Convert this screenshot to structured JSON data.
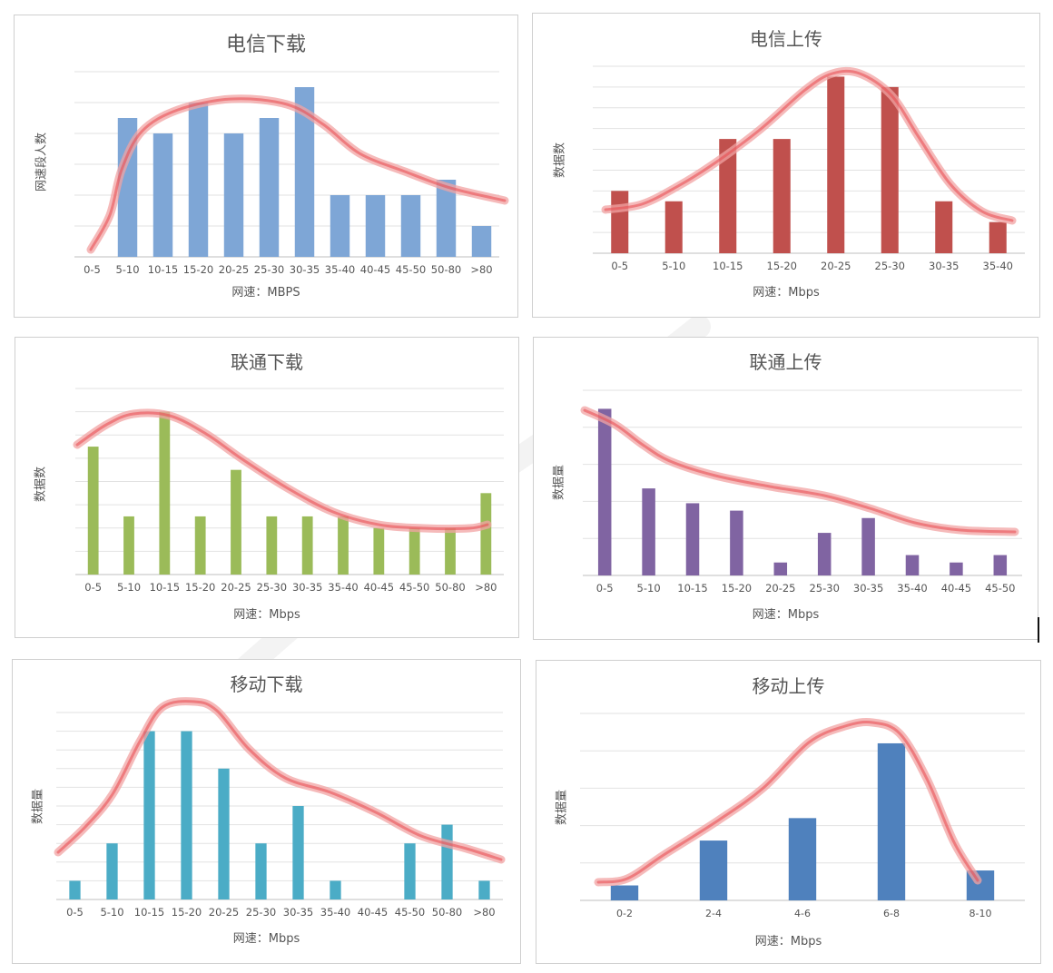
{
  "chart_data": [
    {
      "type": "bar",
      "title": "电信下载",
      "xlabel": "网速：MBPS",
      "ylabel": "网速段人数",
      "categories": [
        "0-5",
        "5-10",
        "10-15",
        "15-20",
        "20-25",
        "25-30",
        "30-35",
        "35-40",
        "40-45",
        "45-50",
        "50-80",
        ">80"
      ],
      "values": [
        0,
        9,
        8,
        10,
        8,
        9,
        11,
        4,
        4,
        4,
        5,
        2
      ],
      "ylim": [
        0,
        12
      ],
      "grid": true,
      "color": "#7ea6d6"
    },
    {
      "type": "bar",
      "title": "电信上传",
      "xlabel": "网速：Mbps",
      "ylabel": "数据数",
      "categories": [
        "0-5",
        "5-10",
        "10-15",
        "15-20",
        "20-25",
        "25-30",
        "30-35",
        "35-40"
      ],
      "values": [
        6,
        5,
        11,
        11,
        17,
        16,
        5,
        3
      ],
      "ylim": [
        0,
        18
      ],
      "grid": true,
      "color": "#c0504d"
    },
    {
      "type": "bar",
      "title": "联通下载",
      "xlabel": "网速：Mbps",
      "ylabel": "数据数",
      "categories": [
        "0-5",
        "5-10",
        "10-15",
        "15-20",
        "20-25",
        "25-30",
        "30-35",
        "35-40",
        "40-45",
        "45-50",
        "50-80",
        ">80"
      ],
      "values": [
        5.5,
        2.5,
        7,
        2.5,
        4.5,
        2.5,
        2.5,
        2.5,
        2,
        2,
        2,
        3.5
      ],
      "ylim": [
        0,
        8
      ],
      "grid": true,
      "color": "#9bbb59"
    },
    {
      "type": "bar",
      "title": "联通上传",
      "xlabel": "网速：Mbps",
      "ylabel": "数据量",
      "categories": [
        "0-5",
        "5-10",
        "10-15",
        "15-20",
        "20-25",
        "25-30",
        "30-35",
        "35-40",
        "40-45",
        "45-50"
      ],
      "values": [
        9,
        4.7,
        3.9,
        3.5,
        0.7,
        2.3,
        3.1,
        1.1,
        0.7,
        1.1
      ],
      "ylim": [
        0,
        10
      ],
      "grid": true,
      "color": "#8064a2"
    },
    {
      "type": "bar",
      "title": "移动下载",
      "xlabel": "网速：Mbps",
      "ylabel": "数据量",
      "categories": [
        "0-5",
        "5-10",
        "10-15",
        "15-20",
        "20-25",
        "25-30",
        "30-35",
        "35-40",
        "40-45",
        "45-50",
        "50-80",
        ">80"
      ],
      "values": [
        1,
        3,
        9,
        9,
        7,
        3,
        5,
        1,
        0,
        3,
        4,
        1
      ],
      "ylim": [
        0,
        10
      ],
      "grid": true,
      "color": "#4bacc6"
    },
    {
      "type": "bar",
      "title": "移动上传",
      "xlabel": "网速：Mbps",
      "ylabel": "数据量",
      "categories": [
        "0-2",
        "2-4",
        "4-6",
        "6-8",
        "8-10"
      ],
      "values": [
        0.4,
        1.6,
        2.2,
        4.2,
        0.8
      ],
      "ylim": [
        0,
        5
      ],
      "grid": true,
      "color": "#4f81bd"
    }
  ]
}
